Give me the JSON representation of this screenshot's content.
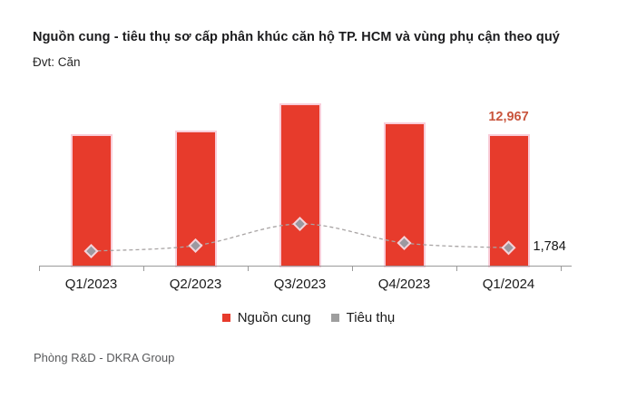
{
  "title": "Nguồn cung - tiêu thụ sơ cấp phân khúc căn hộ TP. HCM và vùng phụ cận theo quý",
  "unit_label": "Đvt: Căn",
  "footer": "Phòng R&D - DKRA Group",
  "annotations": {
    "last_supply": "12,967",
    "last_consumption": "1,784"
  },
  "legend": [
    {
      "label": "Nguồn cung",
      "color": "#e73b2c"
    },
    {
      "label": "Tiêu thụ",
      "color": "#9e9e9e"
    }
  ],
  "colors": {
    "bar": "#e73b2c",
    "bar_glow": "#f9cdd9",
    "marker_fill": "#9c99a0",
    "marker_stroke": "#f3d3da",
    "dashed_line": "#a8a4a4",
    "axis": "#9a9a9a",
    "supply_label_text": "#c9553d",
    "consumption_label_text": "#161616",
    "text": "#1a1a1a",
    "footer_text": "#58595b"
  },
  "chart_data": {
    "type": "bar",
    "subtype": "bar-with-line-overlay",
    "categories": [
      "Q1/2023",
      "Q2/2023",
      "Q3/2023",
      "Q4/2023",
      "Q1/2024"
    ],
    "series": [
      {
        "name": "Nguồn cung",
        "type": "bar",
        "values": [
          12970,
          13310,
          16050,
          14150,
          12967
        ]
      },
      {
        "name": "Tiêu thụ",
        "type": "line",
        "style": "dashed",
        "marker": "diamond",
        "values": [
          1450,
          2000,
          4170,
          2270,
          1784
        ]
      }
    ],
    "data_labels": [
      {
        "series": "Nguồn cung",
        "category": "Q1/2024",
        "text": "12,967"
      },
      {
        "series": "Tiêu thụ",
        "category": "Q1/2024",
        "text": "1,784"
      }
    ],
    "title": "Nguồn cung - tiêu thụ sơ cấp phân khúc căn hộ TP. HCM và vùng phụ cận theo quý",
    "xlabel": "",
    "ylabel": "Căn",
    "ylim": [
      0,
      17000
    ],
    "grid": false,
    "y_axis_visible": false,
    "legend_position": "bottom"
  }
}
